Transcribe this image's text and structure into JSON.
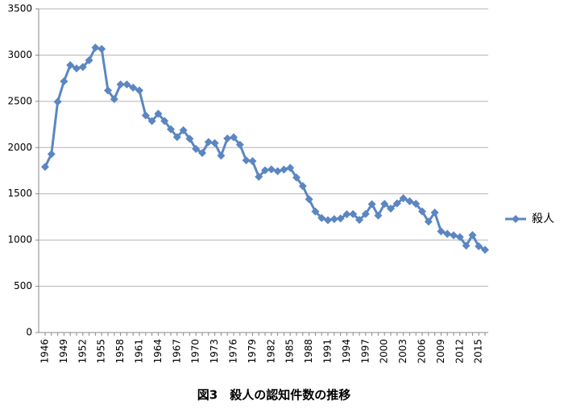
{
  "chart_data": {
    "type": "line",
    "caption": "図3　殺人の認知件数の推移",
    "categories": [
      "1946",
      null,
      null,
      "1949",
      null,
      null,
      "1952",
      null,
      null,
      "1955",
      null,
      null,
      "1958",
      null,
      null,
      "1961",
      null,
      null,
      "1964",
      null,
      null,
      "1967",
      null,
      null,
      "1970",
      null,
      null,
      "1973",
      null,
      null,
      "1976",
      null,
      null,
      "1979",
      null,
      null,
      "1982",
      null,
      null,
      "1985",
      null,
      null,
      "1988",
      null,
      null,
      "1991",
      null,
      null,
      "1994",
      null,
      null,
      "1997",
      null,
      null,
      "2000",
      null,
      null,
      "2003",
      null,
      null,
      "2006",
      null,
      null,
      "2009",
      null,
      null,
      "2012",
      null,
      null,
      "2015",
      null
    ],
    "series": [
      {
        "name": "殺人",
        "color": "#5b86c2",
        "values": [
          1791,
          1930,
          2495,
          2716,
          2892,
          2856,
          2871,
          2944,
          3081,
          3066,
          2617,
          2524,
          2683,
          2683,
          2648,
          2617,
          2348,
          2286,
          2366,
          2288,
          2198,
          2114,
          2188,
          2095,
          1985,
          1941,
          2060,
          2048,
          1912,
          2098,
          2111,
          2031,
          1862,
          1853,
          1684,
          1754,
          1764,
          1745,
          1762,
          1780,
          1676,
          1584,
          1441,
          1308,
          1238,
          1215,
          1227,
          1233,
          1279,
          1281,
          1218,
          1282,
          1388,
          1265,
          1391,
          1340,
          1396,
          1452,
          1419,
          1392,
          1309,
          1199,
          1297,
          1094,
          1067,
          1051,
          1032,
          939,
          1054,
          933,
          895
        ]
      }
    ],
    "ylim": [
      0,
      3500
    ],
    "yticks": [
      0,
      500,
      1000,
      1500,
      2000,
      2500,
      3000,
      3500
    ],
    "grid": true,
    "legend": "right"
  }
}
